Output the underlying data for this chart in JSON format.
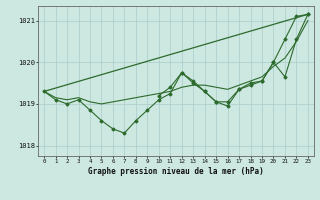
{
  "background_color": "#cce8e0",
  "grid_color": "#aacccc",
  "line_color": "#2d6a2d",
  "title": "Graphe pression niveau de la mer (hPa)",
  "xlim": [
    -0.5,
    23.5
  ],
  "ylim": [
    1017.75,
    1021.35
  ],
  "yticks": [
    1018,
    1019,
    1020,
    1021
  ],
  "xticks": [
    0,
    1,
    2,
    3,
    4,
    5,
    6,
    7,
    8,
    9,
    10,
    11,
    12,
    13,
    14,
    15,
    16,
    17,
    18,
    19,
    20,
    21,
    22,
    23
  ],
  "series_wiggly_x": [
    0,
    1,
    2,
    3,
    4,
    5,
    6,
    7,
    8,
    9,
    10,
    11,
    12,
    13,
    14,
    15,
    16,
    17,
    18,
    19,
    20,
    21,
    22,
    23
  ],
  "series_wiggly_y": [
    1019.3,
    1019.1,
    1019.0,
    1019.1,
    1018.85,
    1018.6,
    1018.4,
    1018.3,
    1018.6,
    1018.85,
    1019.1,
    1019.25,
    1019.75,
    1019.5,
    1019.3,
    1019.05,
    1018.95,
    1019.35,
    1019.45,
    1019.55,
    1020.0,
    1020.55,
    1021.1,
    1021.15
  ],
  "series_smooth_x": [
    0,
    1,
    2,
    3,
    4,
    5,
    6,
    7,
    8,
    9,
    10,
    11,
    12,
    13,
    14,
    15,
    16,
    17,
    18,
    19,
    20,
    21,
    22,
    23
  ],
  "series_smooth_y": [
    1019.3,
    1019.15,
    1019.1,
    1019.15,
    1019.05,
    1019.0,
    1019.05,
    1019.1,
    1019.15,
    1019.2,
    1019.25,
    1019.3,
    1019.4,
    1019.45,
    1019.45,
    1019.4,
    1019.35,
    1019.45,
    1019.55,
    1019.65,
    1019.9,
    1020.1,
    1020.5,
    1021.0
  ],
  "series_trend_x": [
    0,
    23
  ],
  "series_trend_y": [
    1019.3,
    1021.15
  ],
  "series_cluster_x": [
    10,
    11,
    12,
    13,
    14,
    15,
    16,
    17,
    18,
    19,
    20,
    21,
    22,
    23
  ],
  "series_cluster_y": [
    1019.2,
    1019.4,
    1019.75,
    1019.55,
    1019.3,
    1019.05,
    1019.05,
    1019.35,
    1019.5,
    1019.55,
    1020.0,
    1019.65,
    1020.55,
    1021.15
  ]
}
